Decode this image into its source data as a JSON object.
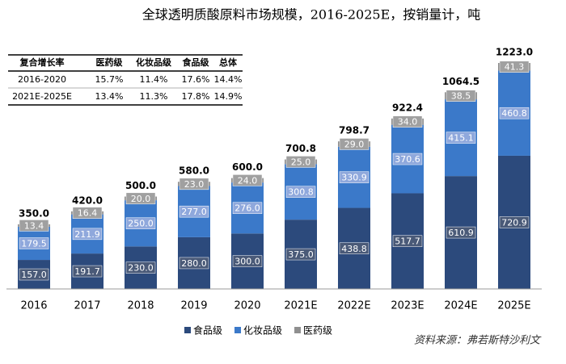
{
  "chart_data": {
    "type": "bar",
    "stacked": true,
    "title": "全球透明质酸原料市场规模，2016-2025E，按销量计，吨",
    "categories": [
      "2016",
      "2017",
      "2018",
      "2019",
      "2020",
      "2021E",
      "2022E",
      "2023E",
      "2024E",
      "2025E"
    ],
    "series": [
      {
        "name": "食品级",
        "color": "#2c4a7c",
        "values": [
          157,
          191.7,
          230,
          280,
          300,
          375,
          438.8,
          517.7,
          610.9,
          720.9
        ],
        "value_labels": [
          "157.0",
          "191.7",
          "230.0",
          "280.0",
          "300.0",
          "375.0",
          "438.8",
          "517.7",
          "610.9",
          "720.9"
        ]
      },
      {
        "name": "化妆品级",
        "color": "#3b79c9",
        "values": [
          179.5,
          211.9,
          250,
          277,
          276,
          300.8,
          330.9,
          370.6,
          415.1,
          460.8
        ],
        "value_labels": [
          "179.5",
          "211.9",
          "250.0",
          "277.0",
          "276.0",
          "300.8",
          "330.9",
          "370.6",
          "415.1",
          "460.8"
        ]
      },
      {
        "name": "医药级",
        "color": "#8f8f8f",
        "values": [
          13.4,
          16.4,
          20,
          23,
          24,
          25,
          29,
          34,
          38.5,
          41.3
        ],
        "value_labels": [
          "13.4",
          "16.4",
          "20.0",
          "23.0",
          "24.0",
          "25.0",
          "29.0",
          "34.0",
          "38.5",
          "41.3"
        ]
      }
    ],
    "totals": [
      350,
      420,
      500,
      580,
      600,
      700.8,
      798.7,
      922.4,
      1064.5,
      1223
    ],
    "totals_labels": [
      "350.0",
      "420.0",
      "500.0",
      "580.0",
      "600.0",
      "700.8",
      "798.7",
      "922.4",
      "1064.5",
      "1223.0"
    ],
    "source": "资料来源：弗若斯特沙利文"
  },
  "table": {
    "header": [
      "复合增长率",
      "医药级",
      "化妆品级",
      "食品级",
      "总体"
    ],
    "rows": [
      [
        "2016-2020",
        "15.7%",
        "11.4%",
        "17.6%",
        "14.4%"
      ],
      [
        "2021E-2025E",
        "13.4%",
        "11.3%",
        "17.8%",
        "14.9%"
      ]
    ]
  }
}
